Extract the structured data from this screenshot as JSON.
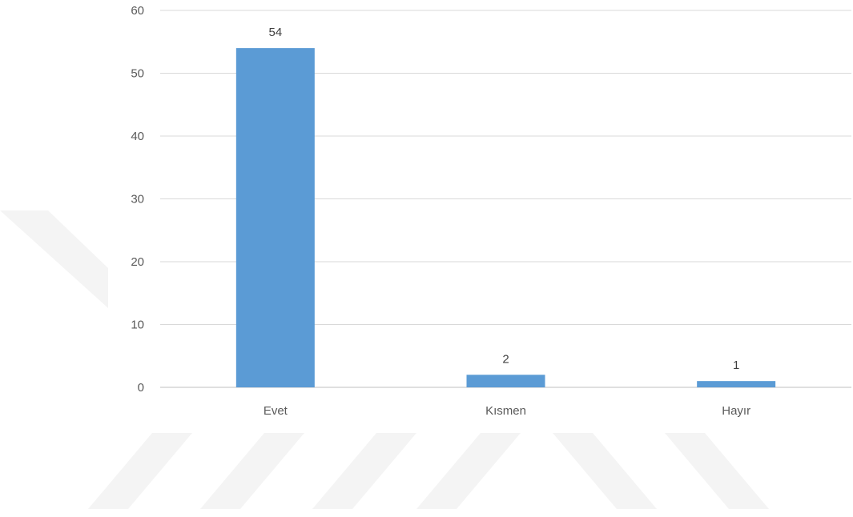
{
  "chart_data": {
    "type": "bar",
    "categories": [
      "Evet",
      "Kısmen",
      "Hayır"
    ],
    "values": [
      54,
      2,
      1
    ],
    "ylim": [
      0,
      60
    ],
    "yticks": [
      0,
      10,
      20,
      30,
      40,
      50,
      60
    ],
    "title": "",
    "xlabel": "",
    "ylabel": "",
    "grid": true,
    "data_labels": true,
    "legend": "none"
  },
  "colors": {
    "bar": "#5b9bd5",
    "grid": "#d9d9d9",
    "text": "#595959",
    "watermark": "#f4f4f4"
  }
}
